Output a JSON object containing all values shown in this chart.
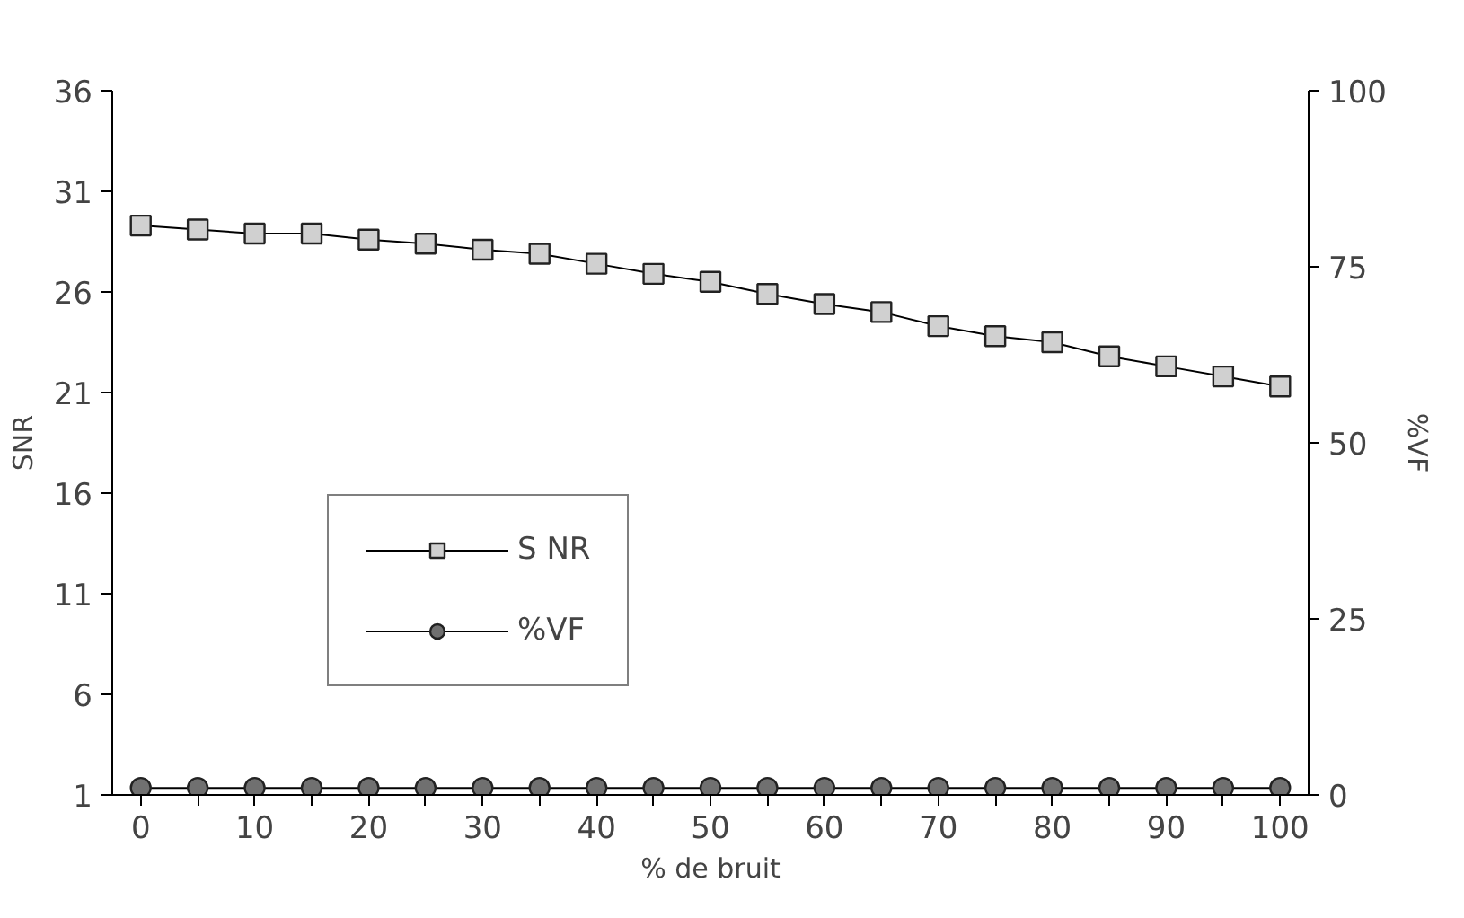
{
  "chart_data": {
    "type": "line",
    "xlabel": "% de bruit",
    "ylabel": "SNR",
    "y2label": "%VF",
    "x": [
      0,
      5,
      10,
      15,
      20,
      25,
      30,
      35,
      40,
      45,
      50,
      55,
      60,
      65,
      70,
      75,
      80,
      85,
      90,
      95,
      100
    ],
    "series": [
      {
        "name": "S NR",
        "color": "#d0d0d0",
        "marker": "square",
        "values": [
          29.3,
          29.1,
          28.9,
          28.9,
          28.6,
          28.4,
          28.1,
          27.9,
          27.4,
          26.9,
          26.5,
          25.9,
          25.4,
          25.0,
          24.3,
          23.8,
          23.5,
          22.8,
          22.3,
          21.8,
          21.3
        ]
      },
      {
        "name": "%VF",
        "color": "#707070",
        "marker": "circle",
        "axis": "y2",
        "values": [
          1,
          1,
          1,
          1,
          1,
          1,
          1,
          1,
          1,
          1,
          1,
          1,
          1,
          1,
          1,
          1,
          1,
          1,
          1,
          1,
          1
        ]
      }
    ],
    "xlim": [
      -2.5,
      102.5
    ],
    "xticks": [
      0,
      {
        "value": 5,
        "label": null
      },
      10,
      {
        "value": 15,
        "label": null
      },
      20,
      {
        "value": 25,
        "label": null
      },
      30,
      {
        "value": 35,
        "label": null
      },
      40,
      {
        "value": 45,
        "label": null
      },
      50,
      {
        "value": 55,
        "label": null
      },
      60,
      {
        "value": 65,
        "label": null
      },
      70,
      {
        "value": 75,
        "label": null
      },
      80,
      {
        "value": 85,
        "label": null
      },
      90,
      {
        "value": 95,
        "label": null
      },
      100
    ],
    "ylim": [
      1,
      36
    ],
    "yticks": [
      1,
      6,
      11,
      16,
      21,
      26,
      31,
      36
    ],
    "y2lim": [
      0,
      100
    ],
    "y2ticks": [
      0,
      25,
      50,
      75,
      100
    ],
    "grid": false,
    "legend": "center"
  }
}
